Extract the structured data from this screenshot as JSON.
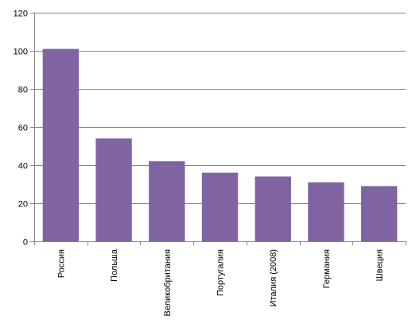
{
  "chart_data": {
    "type": "bar",
    "categories": [
      "Россия",
      "Польша",
      "Великобритания",
      "Португалия",
      "Италия (2008)",
      "Германия",
      "Швеция"
    ],
    "values": [
      101,
      54,
      42,
      36,
      34,
      31,
      29
    ],
    "title": "",
    "xlabel": "",
    "ylabel": "",
    "ylim": [
      0,
      120
    ],
    "yticks": [
      0,
      20,
      40,
      60,
      80,
      100,
      120
    ],
    "grid": true,
    "legend": "none",
    "bar_color": "#8064A2",
    "grid_color": "#868686",
    "axis_color": "#868686"
  }
}
